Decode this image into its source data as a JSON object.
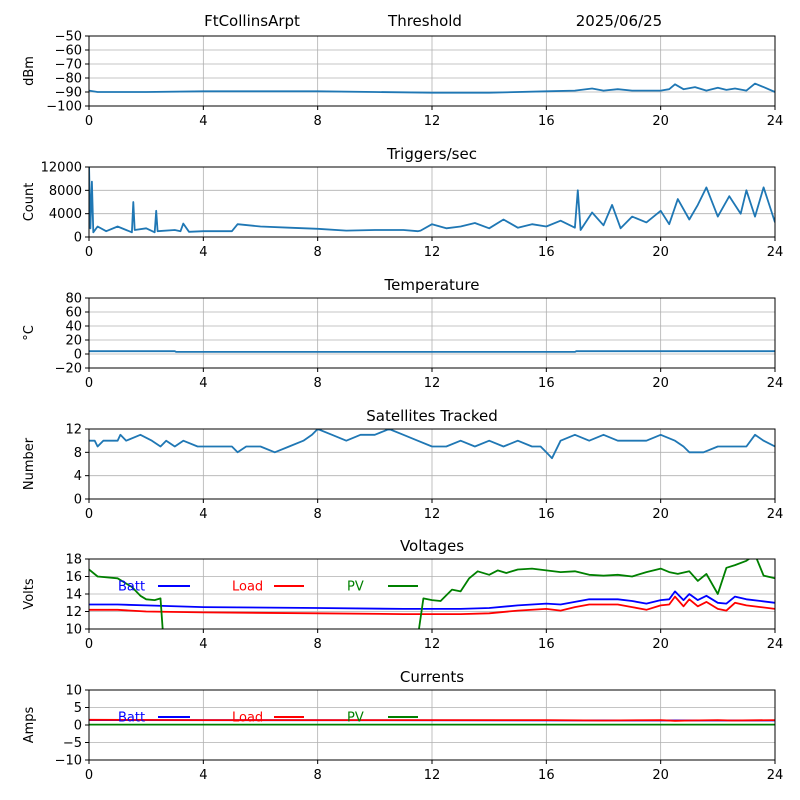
{
  "header": {
    "station": "FtCollinsArpt",
    "threshold_label": "Threshold",
    "date": "2025/06/25"
  },
  "x_ticks": [
    "0",
    "4",
    "8",
    "12",
    "16",
    "20",
    "24"
  ],
  "legend": {
    "batt": "Batt",
    "load": "Load",
    "pv": "PV"
  },
  "colors": {
    "default": "#1f77b4",
    "batt": "#0000ff",
    "load": "#ff0000",
    "pv": "#008000"
  },
  "chart_data": [
    {
      "id": "threshold",
      "type": "line",
      "title": "",
      "ylabel": "dBm",
      "xlim": [
        0,
        24
      ],
      "ylim": [
        -100,
        -50
      ],
      "yticks": [
        "−50",
        "−60",
        "−70",
        "−80",
        "−90",
        "−100"
      ],
      "ytick_values": [
        -50,
        -60,
        -70,
        -80,
        -90,
        -100
      ],
      "grid": true,
      "series": [
        {
          "color": "default",
          "x": [
            0,
            0.3,
            2,
            4,
            8,
            10,
            12,
            14,
            16,
            17,
            17.6,
            18,
            18.5,
            19,
            19.5,
            20,
            20.3,
            20.5,
            20.8,
            21.2,
            21.6,
            22,
            22.3,
            22.6,
            23,
            23.3,
            23.6,
            24
          ],
          "y": [
            -89,
            -90,
            -90,
            -89.5,
            -89.5,
            -90,
            -90.5,
            -90.5,
            -89.5,
            -89,
            -87.5,
            -89,
            -88,
            -89,
            -89,
            -89,
            -88,
            -84.5,
            -88,
            -86.5,
            -89,
            -87,
            -88.5,
            -87.5,
            -89,
            -84,
            -86.5,
            -90
          ]
        }
      ]
    },
    {
      "id": "triggers",
      "type": "line",
      "title": "Triggers/sec",
      "ylabel": "Count",
      "xlim": [
        0,
        24
      ],
      "ylim": [
        0,
        12000
      ],
      "yticks": [
        "12000",
        "8000",
        "4000",
        "0"
      ],
      "ytick_values": [
        12000,
        8000,
        4000,
        0
      ],
      "grid": true,
      "series": [
        {
          "color": "default",
          "x": [
            0,
            0.05,
            0.1,
            0.15,
            0.3,
            0.6,
            1,
            1.5,
            1.55,
            1.6,
            2,
            2.3,
            2.35,
            2.4,
            3,
            3.2,
            3.3,
            3.5,
            4,
            5,
            5.2,
            6,
            7,
            8,
            9,
            10,
            11,
            11.5,
            11.6,
            12,
            12.5,
            13,
            13.5,
            14,
            14.5,
            15,
            15.5,
            16,
            16.5,
            17,
            17.1,
            17.2,
            17.6,
            18,
            18.3,
            18.6,
            19,
            19.5,
            20,
            20.3,
            20.6,
            21,
            21.3,
            21.6,
            22,
            22.4,
            22.8,
            23,
            23.3,
            23.6,
            24
          ],
          "y": [
            12500,
            1500,
            9500,
            800,
            1800,
            1000,
            1800,
            800,
            6000,
            1200,
            1500,
            800,
            4500,
            1000,
            1200,
            1000,
            2300,
            900,
            1000,
            1000,
            2200,
            1800,
            1600,
            1400,
            1100,
            1200,
            1200,
            1000,
            1100,
            2200,
            1500,
            1800,
            2400,
            1500,
            3000,
            1600,
            2200,
            1800,
            2800,
            1600,
            8000,
            1200,
            4200,
            2000,
            5500,
            1500,
            3500,
            2500,
            4500,
            2200,
            6500,
            3000,
            5500,
            8500,
            3500,
            7000,
            4000,
            8000,
            3500,
            8500,
            2500
          ]
        }
      ]
    },
    {
      "id": "temperature",
      "type": "line",
      "title": "Temperature",
      "ylabel": "°C",
      "xlim": [
        0,
        24
      ],
      "ylim": [
        -20,
        80
      ],
      "yticks": [
        "80",
        "60",
        "40",
        "20",
        "0",
        "−20"
      ],
      "ytick_values": [
        80,
        60,
        40,
        20,
        0,
        -20
      ],
      "grid": true,
      "series": [
        {
          "color": "default",
          "x": [
            0,
            3,
            3.05,
            17,
            17.05,
            24
          ],
          "y": [
            4,
            4,
            3,
            3,
            4,
            4
          ]
        }
      ]
    },
    {
      "id": "satellites",
      "type": "line",
      "title": "Satellites Tracked",
      "ylabel": "Number",
      "xlim": [
        0,
        24
      ],
      "ylim": [
        0,
        12
      ],
      "yticks": [
        "12",
        "8",
        "4",
        "0"
      ],
      "ytick_values": [
        12,
        8,
        4,
        0
      ],
      "grid": true,
      "series": [
        {
          "color": "default",
          "x": [
            0,
            0.2,
            0.3,
            0.5,
            1,
            1.1,
            1.3,
            1.8,
            2.2,
            2.5,
            2.7,
            3,
            3.3,
            3.8,
            4.3,
            5,
            5.2,
            5.5,
            6,
            6.5,
            7,
            7.5,
            7.8,
            8,
            8.5,
            9,
            9.5,
            10,
            10.5,
            11,
            11.5,
            12,
            12.5,
            13,
            13.5,
            14,
            14.5,
            15,
            15.5,
            15.8,
            16,
            16.2,
            16.5,
            17,
            17.5,
            18,
            18.5,
            19,
            19.5,
            20,
            20.5,
            20.8,
            21,
            21.5,
            22,
            22.5,
            23,
            23.3,
            23.6,
            24
          ],
          "y": [
            10,
            10,
            9,
            10,
            10,
            11,
            10,
            11,
            10,
            9,
            10,
            9,
            10,
            9,
            9,
            9,
            8,
            9,
            9,
            8,
            9,
            10,
            11,
            12,
            11,
            10,
            11,
            11,
            12,
            11,
            10,
            9,
            9,
            10,
            9,
            10,
            9,
            10,
            9,
            9,
            8,
            7,
            10,
            11,
            10,
            11,
            10,
            10,
            10,
            11,
            10,
            9,
            8,
            8,
            9,
            9,
            9,
            11,
            10,
            9
          ]
        }
      ]
    },
    {
      "id": "voltages",
      "type": "line",
      "title": "Voltages",
      "ylabel": "Volts",
      "xlim": [
        0,
        24
      ],
      "ylim": [
        10,
        18
      ],
      "yticks": [
        "18",
        "16",
        "14",
        "12",
        "10"
      ],
      "ytick_values": [
        18,
        16,
        14,
        12,
        10
      ],
      "grid": true,
      "series": [
        {
          "name": "Batt",
          "color": "batt",
          "x": [
            0,
            1,
            2,
            4,
            8,
            11,
            13,
            14,
            15,
            16,
            16.5,
            17,
            17.5,
            18,
            18.5,
            19,
            19.5,
            20,
            20.3,
            20.5,
            20.8,
            21,
            21.3,
            21.6,
            22,
            22.3,
            22.6,
            23,
            23.5,
            24
          ],
          "y": [
            12.8,
            12.8,
            12.7,
            12.5,
            12.4,
            12.3,
            12.3,
            12.4,
            12.7,
            12.9,
            12.8,
            13.1,
            13.4,
            13.4,
            13.4,
            13.2,
            12.9,
            13.3,
            13.4,
            14.3,
            13.3,
            14.0,
            13.3,
            13.8,
            13.0,
            12.9,
            13.7,
            13.4,
            13.2,
            13.0
          ]
        },
        {
          "name": "Load",
          "color": "load",
          "x": [
            0,
            1,
            2,
            4,
            8,
            11,
            13,
            14,
            15,
            16,
            16.5,
            17,
            17.5,
            18,
            18.5,
            19,
            19.5,
            20,
            20.3,
            20.5,
            20.8,
            21,
            21.3,
            21.6,
            22,
            22.3,
            22.6,
            23,
            23.5,
            24
          ],
          "y": [
            12.2,
            12.2,
            12.0,
            11.9,
            11.8,
            11.7,
            11.7,
            11.8,
            12.1,
            12.3,
            12.1,
            12.5,
            12.8,
            12.8,
            12.8,
            12.5,
            12.2,
            12.7,
            12.8,
            13.7,
            12.6,
            13.4,
            12.6,
            13.1,
            12.3,
            12.1,
            13.0,
            12.7,
            12.5,
            12.3
          ]
        },
        {
          "name": "PV",
          "color": "pv",
          "x": [
            0,
            0.3,
            1,
            1.5,
            1.8,
            2,
            2.3,
            2.5,
            2.6,
            11.5,
            11.7,
            12,
            12.3,
            12.7,
            13,
            13.3,
            13.6,
            14,
            14.3,
            14.6,
            15,
            15.5,
            16,
            16.5,
            17,
            17.5,
            18,
            18.5,
            19,
            19.5,
            20,
            20.3,
            20.6,
            21,
            21.3,
            21.6,
            22,
            22.3,
            22.6,
            23,
            23.3,
            23.6,
            24
          ],
          "y": [
            16.8,
            16.0,
            15.8,
            14.8,
            13.8,
            13.4,
            13.3,
            13.5,
            9.0,
            9.0,
            13.5,
            13.3,
            13.2,
            14.5,
            14.3,
            15.8,
            16.6,
            16.2,
            16.7,
            16.4,
            16.8,
            16.9,
            16.7,
            16.5,
            16.6,
            16.2,
            16.1,
            16.2,
            16.0,
            16.5,
            16.9,
            16.5,
            16.3,
            16.6,
            15.5,
            16.3,
            14.0,
            17.0,
            17.3,
            17.8,
            18.5,
            16.1,
            15.8
          ]
        }
      ]
    },
    {
      "id": "currents",
      "type": "line",
      "title": "Currents",
      "ylabel": "Amps",
      "xlim": [
        0,
        24
      ],
      "ylim": [
        -10,
        10
      ],
      "yticks": [
        "10",
        "5",
        "0",
        "−5",
        "−10"
      ],
      "ytick_values": [
        10,
        5,
        0,
        -5,
        -10
      ],
      "grid": true,
      "series": [
        {
          "name": "Batt",
          "color": "batt",
          "x": [
            0,
            24
          ],
          "y": [
            1.4,
            1.3
          ]
        },
        {
          "name": "Load",
          "color": "load",
          "x": [
            0,
            4,
            8,
            12,
            16,
            18,
            20,
            20.5,
            21,
            22,
            22.5,
            24
          ],
          "y": [
            1.5,
            1.4,
            1.4,
            1.4,
            1.4,
            1.3,
            1.4,
            1.2,
            1.3,
            1.4,
            1.3,
            1.4
          ]
        },
        {
          "name": "PV",
          "color": "pv",
          "x": [
            0,
            24
          ],
          "y": [
            0.1,
            0.1
          ]
        }
      ]
    }
  ]
}
